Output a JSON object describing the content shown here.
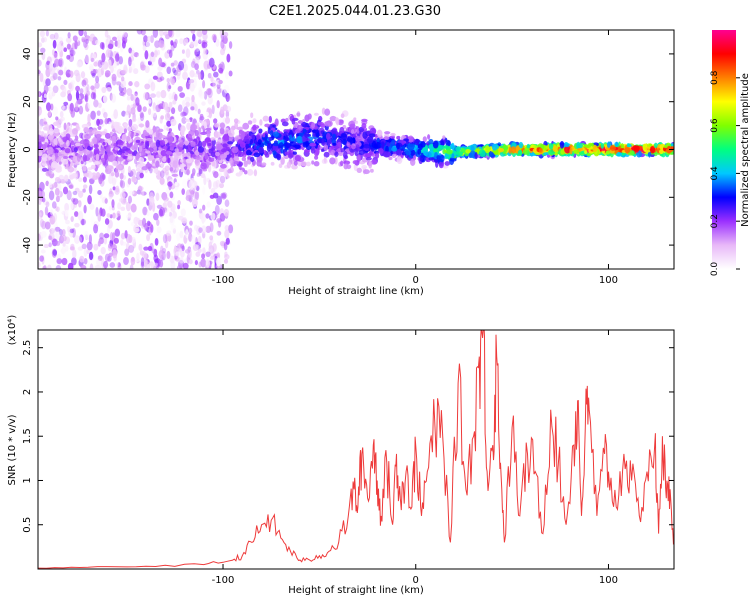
{
  "title": "C2E1.2025.044.01.23.G30",
  "colors": {
    "line": "#ee3b3b",
    "frame": "#000000",
    "colormap": [
      "#ffffff",
      "#e8b8f8",
      "#9b30ff",
      "#0000ff",
      "#00c8ff",
      "#00ff80",
      "#80ff00",
      "#ffff00",
      "#ff8000",
      "#ff0000",
      "#ff0090"
    ]
  },
  "chart_data": [
    {
      "type": "heatmap",
      "xlabel": "Height of straight line (km)",
      "ylabel": "Frequency (Hz)",
      "xlim": [
        -196,
        134
      ],
      "ylim": [
        -50,
        50
      ],
      "xticks": [
        -100,
        0,
        100
      ],
      "yticks": [
        -40,
        -20,
        0,
        20,
        40
      ],
      "colorbar": {
        "label": "Normalized spectral amplitude",
        "range": [
          0.0,
          1.0
        ],
        "ticks": [
          0.0,
          0.2,
          0.4,
          0.6,
          0.8
        ]
      },
      "description_points": [
        {
          "x": -196,
          "y": 0,
          "amplitude": 0.15
        },
        {
          "x": -100,
          "y": 0,
          "amplitude": 0.2
        },
        {
          "x": -75,
          "y": 3,
          "amplitude": 0.35
        },
        {
          "x": -50,
          "y": 5,
          "amplitude": 0.3
        },
        {
          "x": -30,
          "y": 3,
          "amplitude": 0.25
        },
        {
          "x": 0,
          "y": 0,
          "amplitude": 0.4
        },
        {
          "x": 20,
          "y": -1,
          "amplitude": 0.6
        },
        {
          "x": 50,
          "y": 0,
          "amplitude": 0.8
        },
        {
          "x": 100,
          "y": 0,
          "amplitude": 0.95
        },
        {
          "x": 134,
          "y": 0,
          "amplitude": 0.95
        }
      ]
    },
    {
      "type": "line",
      "xlabel": "Height of straight line (km)",
      "ylabel": "SNR (10 * v/v)",
      "y_multiplier": "(x10⁴)",
      "xlim": [
        -196,
        134
      ],
      "ylim": [
        0,
        2.7
      ],
      "xticks": [
        -100,
        0,
        100
      ],
      "yticks": [
        0.5,
        1.0,
        1.5,
        2.0,
        2.5
      ],
      "series": [
        {
          "x": [
            -196,
            -170,
            -140,
            -110,
            -95,
            -90,
            -85,
            -80,
            -75,
            -70,
            -65,
            -60,
            -55,
            -50,
            -45,
            -40,
            -35,
            -32,
            -30,
            -28,
            -25,
            -22,
            -20,
            -18,
            -15,
            -12,
            -10,
            -8,
            -5,
            -2,
            0,
            3,
            6,
            10,
            14,
            18,
            22,
            26,
            30,
            33,
            35,
            37,
            40,
            42,
            44,
            46,
            50,
            54,
            58,
            62,
            66,
            70,
            74,
            78,
            82,
            84,
            86,
            88,
            90,
            94,
            98,
            100,
            104,
            108,
            112,
            116,
            120,
            124,
            126,
            128,
            130,
            132,
            134
          ],
          "y": [
            0.01,
            0.02,
            0.03,
            0.05,
            0.1,
            0.15,
            0.3,
            0.5,
            0.55,
            0.35,
            0.2,
            0.1,
            0.1,
            0.15,
            0.2,
            0.3,
            0.6,
            0.9,
            0.7,
            1.3,
            0.8,
            1.4,
            1.0,
            0.6,
            1.2,
            0.5,
            1.3,
            0.8,
            1.1,
            0.7,
            1.4,
            0.6,
            1.1,
            1.6,
            1.5,
            0.3,
            2.1,
            0.9,
            1.5,
            2.4,
            2.7,
            1.1,
            1.4,
            2.4,
            1.2,
            0.3,
            1.6,
            0.6,
            1.3,
            1.1,
            0.4,
            1.8,
            1.2,
            0.5,
            1.4,
            1.9,
            0.6,
            1.6,
            1.8,
            0.6,
            1.3,
            1.1,
            0.7,
            1.3,
            1.0,
            0.6,
            1.1,
            1.4,
            0.4,
            1.5,
            0.8,
            0.9,
            0.3
          ]
        }
      ]
    }
  ]
}
